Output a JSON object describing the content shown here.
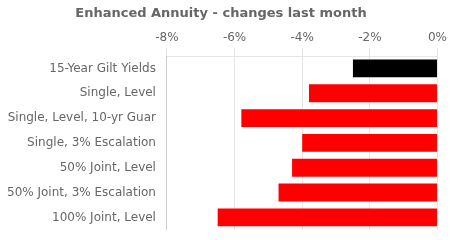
{
  "chart_data": {
    "type": "bar",
    "orientation": "horizontal",
    "title": "Enhanced Annuity - changes last month",
    "categories": [
      "100% Joint, Level",
      "50% Joint, 3% Escalation",
      "50% Joint, Level",
      "Single, 3% Escalation",
      "Single, Level, 10-yr Guar",
      "Single, Level",
      "15-Year Gilt Yields"
    ],
    "values": [
      -6.5,
      -4.7,
      -4.3,
      -4.0,
      -5.8,
      -3.8,
      -2.5
    ],
    "colors": [
      "#ff0000",
      "#ff0000",
      "#ff0000",
      "#ff0000",
      "#ff0000",
      "#ff0000",
      "#000000"
    ],
    "xlim": [
      -8,
      0
    ],
    "xticks": [
      {
        "value": -8,
        "label": "-8%"
      },
      {
        "value": -6,
        "label": "-6%"
      },
      {
        "value": -4,
        "label": "-4%"
      },
      {
        "value": -2,
        "label": "-2%"
      },
      {
        "value": 0,
        "label": "0%"
      }
    ],
    "grid": true
  }
}
